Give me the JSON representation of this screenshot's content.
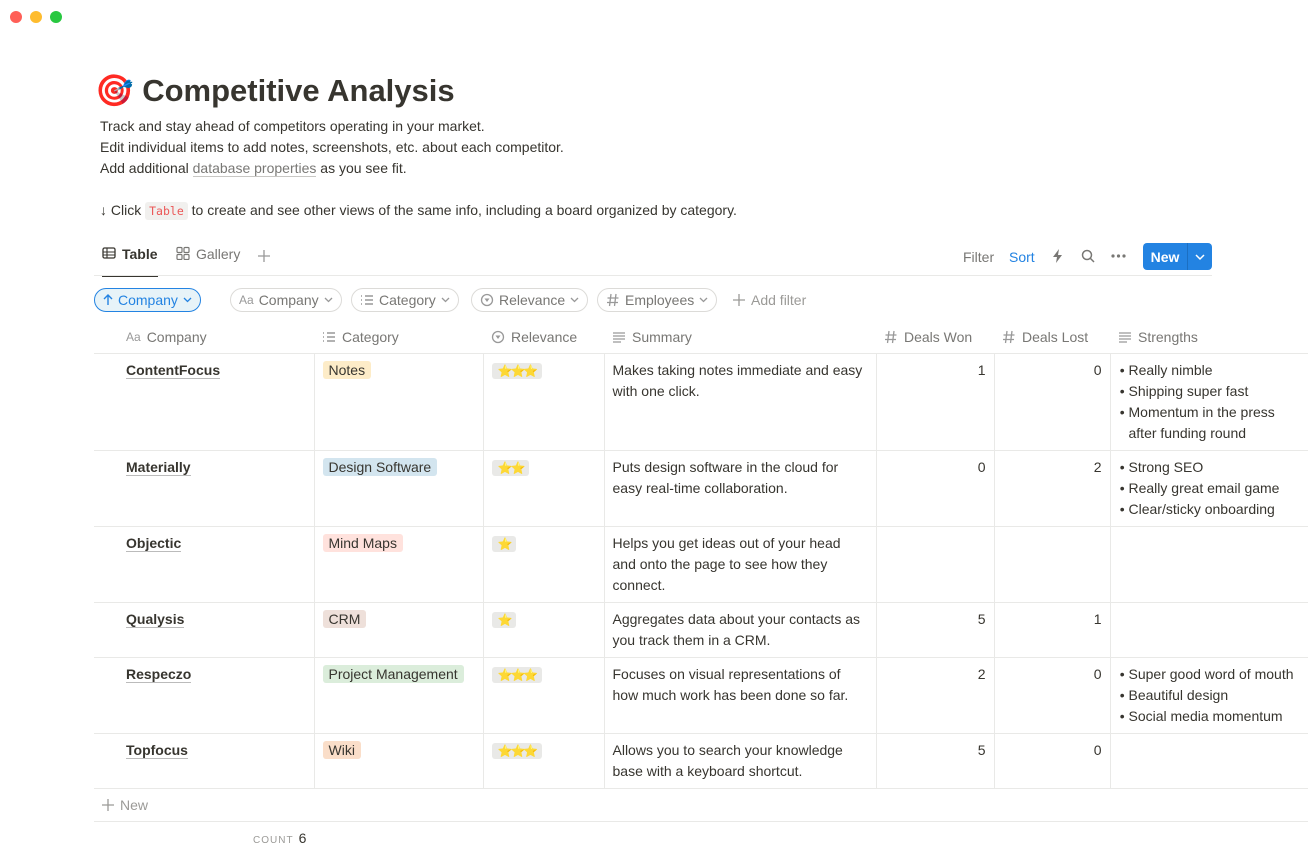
{
  "icon": "🎯",
  "title": "Competitive Analysis",
  "description": [
    "Track and stay ahead of competitors operating in your market.",
    "Edit individual items to add notes, screenshots, etc. about each competitor."
  ],
  "description_link": {
    "before": "Add additional ",
    "link": "database properties",
    "after": " as you see fit."
  },
  "hint": {
    "before": "↓ Click ",
    "code": "Table",
    "after": " to create and see other views of the same info, including a board organized by category."
  },
  "views": [
    {
      "name": "Table",
      "active": true,
      "kind": "table"
    },
    {
      "name": "Gallery",
      "active": false,
      "kind": "gallery"
    }
  ],
  "toolbar": {
    "filter": "Filter",
    "sort": "Sort",
    "new": "New"
  },
  "filters": {
    "sort": "Company",
    "chips": [
      {
        "name": "Company",
        "icon": "Aa"
      },
      {
        "name": "Category",
        "kind": "list"
      },
      {
        "name": "Relevance",
        "kind": "select"
      },
      {
        "name": "Employees",
        "kind": "number"
      }
    ],
    "add": "Add filter"
  },
  "table": {
    "columns": [
      {
        "name": "Company",
        "icon": "Aa"
      },
      {
        "name": "Category",
        "kind": "list"
      },
      {
        "name": "Relevance",
        "kind": "select"
      },
      {
        "name": "Summary",
        "kind": "lines"
      },
      {
        "name": "Deals Won",
        "kind": "number"
      },
      {
        "name": "Deals Lost",
        "kind": "number"
      },
      {
        "name": "Strengths",
        "kind": "lines"
      }
    ],
    "rows": [
      {
        "company": "ContentFocus",
        "category": {
          "label": "Notes",
          "color": "#fdecc8"
        },
        "relevance": "⭐⭐⭐",
        "summary": "Makes taking notes immediate and easy with one click.",
        "deals_won": 1,
        "deals_lost": 0,
        "strengths": [
          "Really nimble",
          "Shipping super fast",
          "Momentum in the press after funding round"
        ]
      },
      {
        "company": "Materially",
        "category": {
          "label": "Design Software",
          "color": "#d3e5ef"
        },
        "relevance": "⭐⭐",
        "summary": "Puts design software in the cloud for easy real-time collaboration.",
        "deals_won": 0,
        "deals_lost": 2,
        "strengths": [
          "Strong SEO",
          "Really great email game",
          "Clear/sticky onboarding"
        ]
      },
      {
        "company": "Objectic",
        "category": {
          "label": "Mind Maps",
          "color": "#ffe2dd"
        },
        "relevance": "⭐",
        "summary": "Helps you get ideas out of your head and onto the page to see how they connect.",
        "deals_won": null,
        "deals_lost": null,
        "strengths": []
      },
      {
        "company": "Qualysis",
        "category": {
          "label": "CRM",
          "color": "#eee0da"
        },
        "relevance": "⭐",
        "summary": "Aggregates data about your contacts as you track them in a CRM.",
        "deals_won": 5,
        "deals_lost": 1,
        "strengths": []
      },
      {
        "company": "Respeczo",
        "category": {
          "label": "Project Management",
          "color": "#dbeddb"
        },
        "relevance": "⭐⭐⭐",
        "summary": "Focuses on visual representations of how much work has been done so far.",
        "deals_won": 2,
        "deals_lost": 0,
        "strengths": [
          "Super good word of mouth",
          "Beautiful design",
          "Social media momentum"
        ]
      },
      {
        "company": "Topfocus",
        "category": {
          "label": "Wiki",
          "color": "#fadec9"
        },
        "relevance": "⭐⭐⭐",
        "summary": "Allows you to search your knowledge base with a keyboard shortcut.",
        "deals_won": 5,
        "deals_lost": 0,
        "strengths": []
      }
    ]
  },
  "new_row": "New",
  "count": {
    "label": "COUNT",
    "value": 6
  }
}
